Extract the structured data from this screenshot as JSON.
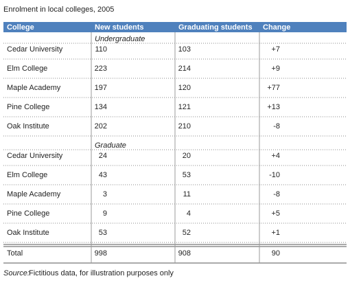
{
  "title": "Enrolment in local colleges, 2005",
  "table": {
    "header": [
      "College",
      "New students",
      "Graduating students",
      "Change"
    ],
    "sections": [
      {
        "label": "Undergraduate",
        "rows": [
          [
            "Cedar University",
            110,
            103,
            "+7"
          ],
          [
            "Elm College",
            223,
            214,
            "+9"
          ],
          [
            "Maple Academy",
            197,
            120,
            "+77"
          ],
          [
            "Pine College",
            134,
            121,
            "+13"
          ],
          [
            "Oak Institute",
            202,
            210,
            "-8"
          ]
        ]
      },
      {
        "label": "Graduate",
        "rows": [
          [
            "Cedar University",
            24,
            20,
            "+4"
          ],
          [
            "Elm College",
            43,
            53,
            "-10"
          ],
          [
            "Maple Academy",
            3,
            11,
            "-8"
          ],
          [
            "Pine College",
            9,
            4,
            "+5"
          ],
          [
            "Oak Institute",
            53,
            52,
            "+1"
          ]
        ]
      }
    ],
    "total": [
      "Total",
      998,
      908,
      90
    ]
  },
  "source": {
    "label": "Source:",
    "text": "Fictitious data, for illustration purposes only"
  }
}
